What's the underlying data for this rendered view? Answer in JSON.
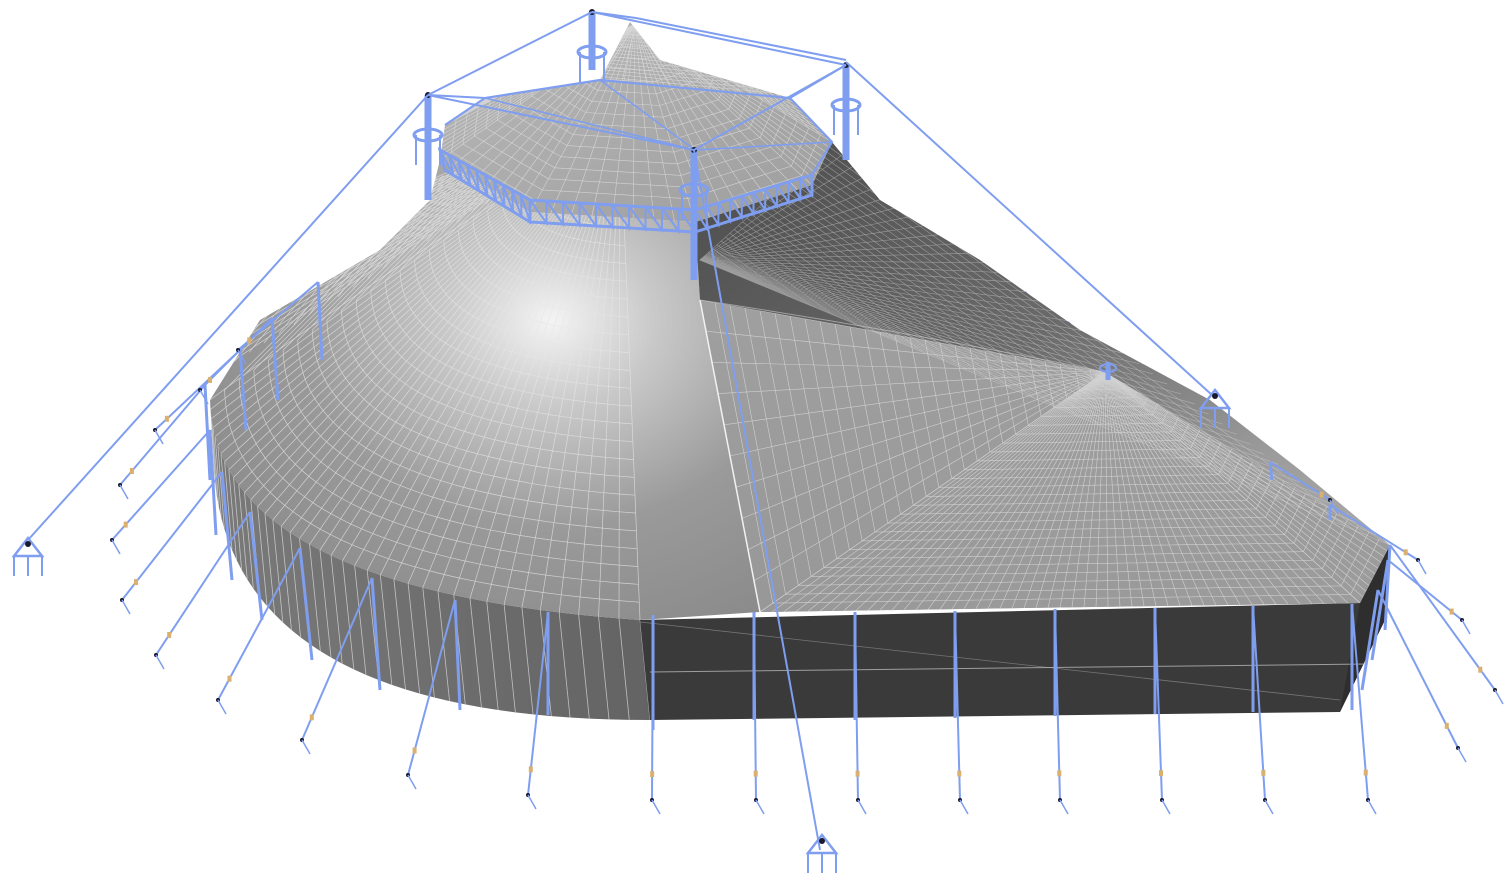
{
  "colors": {
    "background": "#ffffff",
    "membrane_light": "#a9a9a9",
    "membrane_mid": "#8e8e8e",
    "membrane_dark": "#5f5f5f",
    "wall_grey": "#6e6e6e",
    "wall_dark": "#3a3a3a",
    "mesh_line": "#e6e6e6",
    "structure_blue": "#7f9ef0",
    "anchor_dark": "#1a1a2e",
    "tensioner": "#d9b070"
  },
  "icons": {
    "mast": "mast-icon",
    "anchor": "ground-anchor-icon",
    "tensioner": "tensioner-icon"
  }
}
